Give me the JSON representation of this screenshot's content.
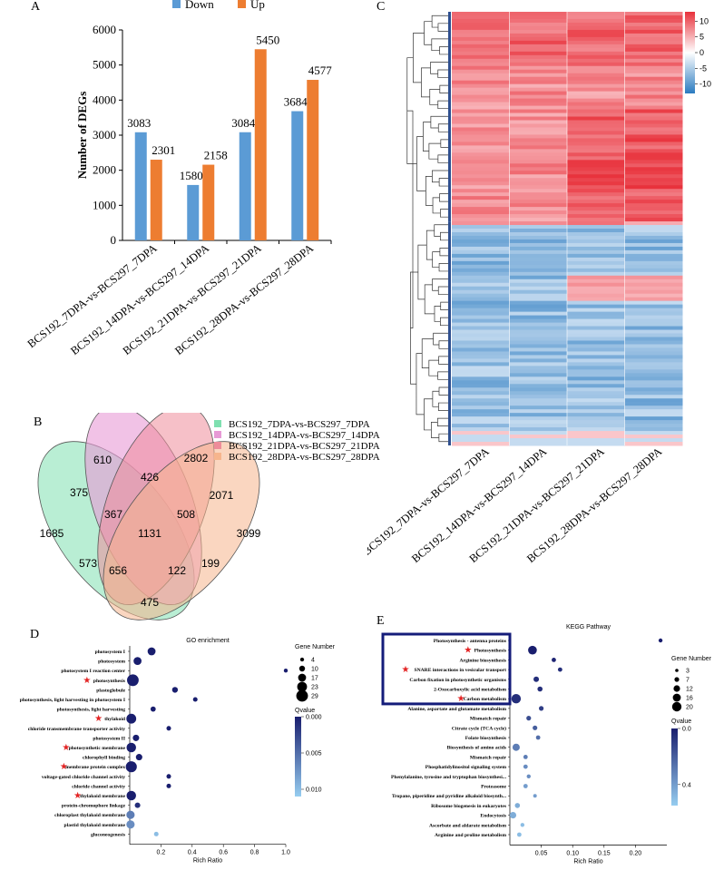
{
  "panels": {
    "A": {
      "label": "A",
      "chart_data": {
        "type": "bar",
        "categories": [
          "BCS192_7DPA-vs-BCS297_7DPA",
          "BCS192_14DPA-vs-BCS297_14DPA",
          "BCS192_21DPA-vs-BCS297_21DPA",
          "BCS192_28DPA-vs-BCS297_28DPA"
        ],
        "series": [
          {
            "name": "Down",
            "color": "#5B9BD5",
            "values": [
              3083,
              1580,
              3084,
              3684
            ]
          },
          {
            "name": "Up",
            "color": "#ED7D31",
            "values": [
              2301,
              2158,
              5450,
              4577
            ]
          }
        ],
        "ylabel": "Number of DEGs",
        "ylim": [
          0,
          6000
        ],
        "yticks": [
          "0",
          "1000",
          "2000",
          "3000",
          "4000",
          "5000",
          "6000"
        ],
        "legend": "top"
      }
    },
    "B": {
      "label": "B",
      "chart_data": {
        "type": "venn",
        "sets": [
          {
            "name": "BCS192_7DPA-vs-BCS297_7DPA",
            "color": "#7FE0B0"
          },
          {
            "name": "BCS192_14DPA-vs-BCS297_14DPA",
            "color": "#E79AD6"
          },
          {
            "name": "BCS192_21DPA-vs-BCS297_21DPA",
            "color": "#EE8C9A"
          },
          {
            "name": "BCS192_28DPA-vs-BCS297_28DPA",
            "color": "#F6B58D"
          }
        ],
        "regions": [
          {
            "sets": "A",
            "value": "1685"
          },
          {
            "sets": "B",
            "value": "610"
          },
          {
            "sets": "C",
            "value": "2802"
          },
          {
            "sets": "D",
            "value": "3099"
          },
          {
            "sets": "AB",
            "value": "375"
          },
          {
            "sets": "BC",
            "value": "426"
          },
          {
            "sets": "CD",
            "value": "2071"
          },
          {
            "sets": "ABC",
            "value": "367"
          },
          {
            "sets": "BCD",
            "value": "508"
          },
          {
            "sets": "ABCD",
            "value": "1131"
          },
          {
            "sets": "AD",
            "value": "573"
          },
          {
            "sets": "ACD",
            "value": "656"
          },
          {
            "sets": "ABD",
            "value": "122"
          },
          {
            "sets": "BD",
            "value": "199"
          },
          {
            "sets": "AC",
            "value": "475"
          }
        ],
        "legend": "top-right"
      }
    },
    "C": {
      "label": "C",
      "chart_data": {
        "type": "heatmap",
        "columns": [
          "BCS192_7DPA-vs-BCS297_7DPA",
          "BCS192_14DPA-vs-BCS297_14DPA",
          "BCS192_21DPA-vs-BCS297_21DPA",
          "BCS192_28DPA-vs-BCS297_28DPA"
        ],
        "colorbar_ticks": [
          "10",
          "5",
          "0",
          "-5",
          "-10"
        ],
        "colorbar_range": [
          -13,
          13
        ],
        "high_color": "#E8313B",
        "low_color": "#2B7BC0"
      }
    },
    "D": {
      "label": "D",
      "chart_data": {
        "type": "scatter",
        "title": "GO enrichment",
        "xlabel": "Rich Ratio",
        "xlim": [
          0,
          1.0
        ],
        "xticks": [
          "0.2",
          "0.4",
          "0.6",
          "0.8",
          "1.0"
        ],
        "terms": [
          {
            "name": "photosystem I",
            "x": 0.14,
            "size": 17,
            "q": 0.0,
            "star": false
          },
          {
            "name": "photosystem",
            "x": 0.05,
            "size": 17,
            "q": 0.0,
            "star": false
          },
          {
            "name": "photosystem I reaction center",
            "x": 1.0,
            "size": 4,
            "q": 0.0,
            "star": false
          },
          {
            "name": "photosynthesis",
            "x": 0.02,
            "size": 29,
            "q": 0.0,
            "star": true
          },
          {
            "name": "plastoglobule",
            "x": 0.29,
            "size": 10,
            "q": 0.0,
            "star": false
          },
          {
            "name": "photosynthesis, light harvesting in photosystem I",
            "x": 0.42,
            "size": 6,
            "q": 0.0,
            "star": false
          },
          {
            "name": "photosynthesis, light harvesting",
            "x": 0.15,
            "size": 8,
            "q": 0.0,
            "star": false
          },
          {
            "name": "thylakoid",
            "x": 0.01,
            "size": 23,
            "q": 0.0,
            "star": true
          },
          {
            "name": "chloride transmembrane transporter activity",
            "x": 0.25,
            "size": 6,
            "q": 0.0,
            "star": false
          },
          {
            "name": "photosystem II",
            "x": 0.04,
            "size": 12,
            "q": 0.0,
            "star": false
          },
          {
            "name": "photosynthetic membrane",
            "x": 0.01,
            "size": 22,
            "q": 0.0,
            "star": true
          },
          {
            "name": "chlorophyll binding",
            "x": 0.06,
            "size": 12,
            "q": 0.0,
            "star": false
          },
          {
            "name": "membrane protein complex",
            "x": 0.01,
            "size": 27,
            "q": 0.0,
            "star": true
          },
          {
            "name": "voltage-gated chloride channel activity",
            "x": 0.25,
            "size": 6,
            "q": 0.0,
            "star": false
          },
          {
            "name": "chloride channel activity",
            "x": 0.25,
            "size": 6,
            "q": 0.0,
            "star": false
          },
          {
            "name": "thylakoid membrane",
            "x": 0.01,
            "size": 22,
            "q": 0.0,
            "star": true
          },
          {
            "name": "protein-chromophore linkage",
            "x": 0.05,
            "size": 9,
            "q": 0.001,
            "star": false
          },
          {
            "name": "chloroplast thylakoid membrane",
            "x": 0.005,
            "size": 18,
            "q": 0.006,
            "star": false
          },
          {
            "name": "plastid thylakoid membrane",
            "x": 0.005,
            "size": 18,
            "q": 0.007,
            "star": false
          },
          {
            "name": "gluconeogenesis",
            "x": 0.17,
            "size": 6,
            "q": 0.01,
            "star": false
          }
        ],
        "size_legend": {
          "title": "Gene Number",
          "values": [
            "4",
            "10",
            "17",
            "23",
            "29"
          ]
        },
        "color_legend": {
          "title": "Qvalue",
          "ticks": [
            "0.000",
            "0.005",
            "0.010"
          ]
        }
      }
    },
    "E": {
      "label": "E",
      "chart_data": {
        "type": "scatter",
        "title": "KEGG Pathway",
        "xlabel": "Rich Ratio",
        "xlim": [
          0,
          0.25
        ],
        "xticks": [
          "0.05",
          "0.10",
          "0.15",
          "0.20"
        ],
        "terms": [
          {
            "name": "Photosynthesis - antenna proteins",
            "x": 0.24,
            "size": 5,
            "q": 0.0,
            "star": false
          },
          {
            "name": "Photosynthesis",
            "x": 0.036,
            "size": 18,
            "q": 0.0,
            "star": true
          },
          {
            "name": "Arginine biosynthesis",
            "x": 0.07,
            "size": 6,
            "q": 0.02,
            "star": false
          },
          {
            "name": "SNARE interactions in vesicular transport",
            "x": 0.08,
            "size": 6,
            "q": 0.05,
            "star": true
          },
          {
            "name": "Carbon fixation in photosynthetic organisms",
            "x": 0.042,
            "size": 9,
            "q": 0.05,
            "star": false
          },
          {
            "name": "2-Oxocarboxylic acid metabolism",
            "x": 0.048,
            "size": 8,
            "q": 0.05,
            "star": false
          },
          {
            "name": "Carbon metabolism",
            "x": 0.01,
            "size": 20,
            "q": 0.05,
            "star": true
          },
          {
            "name": "Alanine, aspartate and glutamate metabolism",
            "x": 0.05,
            "size": 7,
            "q": 0.1,
            "star": false
          },
          {
            "name": "Mismatch repair",
            "x": 0.03,
            "size": 7,
            "q": 0.15,
            "star": false
          },
          {
            "name": "Citrate cycle (TCA cycle)",
            "x": 0.04,
            "size": 7,
            "q": 0.2,
            "star": false
          },
          {
            "name": "Folate biosynthesis",
            "x": 0.045,
            "size": 6,
            "q": 0.25,
            "star": false
          },
          {
            "name": "Biosynthesis of amino acids",
            "x": 0.01,
            "size": 14,
            "q": 0.3,
            "star": false
          },
          {
            "name": "Mismatch repair",
            "x": 0.025,
            "size": 6,
            "q": 0.3,
            "star": false
          },
          {
            "name": "Phosphatidylinositol signaling system",
            "x": 0.025,
            "size": 6,
            "q": 0.35,
            "star": false
          },
          {
            "name": "Phenylalanine, tyrosine and tryptophan biosynthesi...",
            "x": 0.03,
            "size": 5,
            "q": 0.35,
            "star": false
          },
          {
            "name": "Proteasome",
            "x": 0.025,
            "size": 6,
            "q": 0.4,
            "star": false
          },
          {
            "name": "Tropane, piperidine and pyridine alkaloid biosynth...",
            "x": 0.04,
            "size": 4,
            "q": 0.4,
            "star": false
          },
          {
            "name": "Ribosome biogenesis in eukaryotes",
            "x": 0.012,
            "size": 8,
            "q": 0.45,
            "star": false
          },
          {
            "name": "Endocytosis",
            "x": 0.005,
            "size": 12,
            "q": 0.45,
            "star": false
          },
          {
            "name": "Ascorbate and aldarate metabolism",
            "x": 0.02,
            "size": 5,
            "q": 0.5,
            "star": false
          },
          {
            "name": "Arginine and proline metabolism",
            "x": 0.015,
            "size": 6,
            "q": 0.5,
            "star": false
          }
        ],
        "highlight_box_rows": 7,
        "size_legend": {
          "title": "Gene Number",
          "values": [
            "3",
            "7",
            "12",
            "16",
            "20"
          ]
        },
        "color_legend": {
          "title": "Qvalue",
          "ticks": [
            "0.0",
            "0.4"
          ]
        }
      }
    }
  }
}
